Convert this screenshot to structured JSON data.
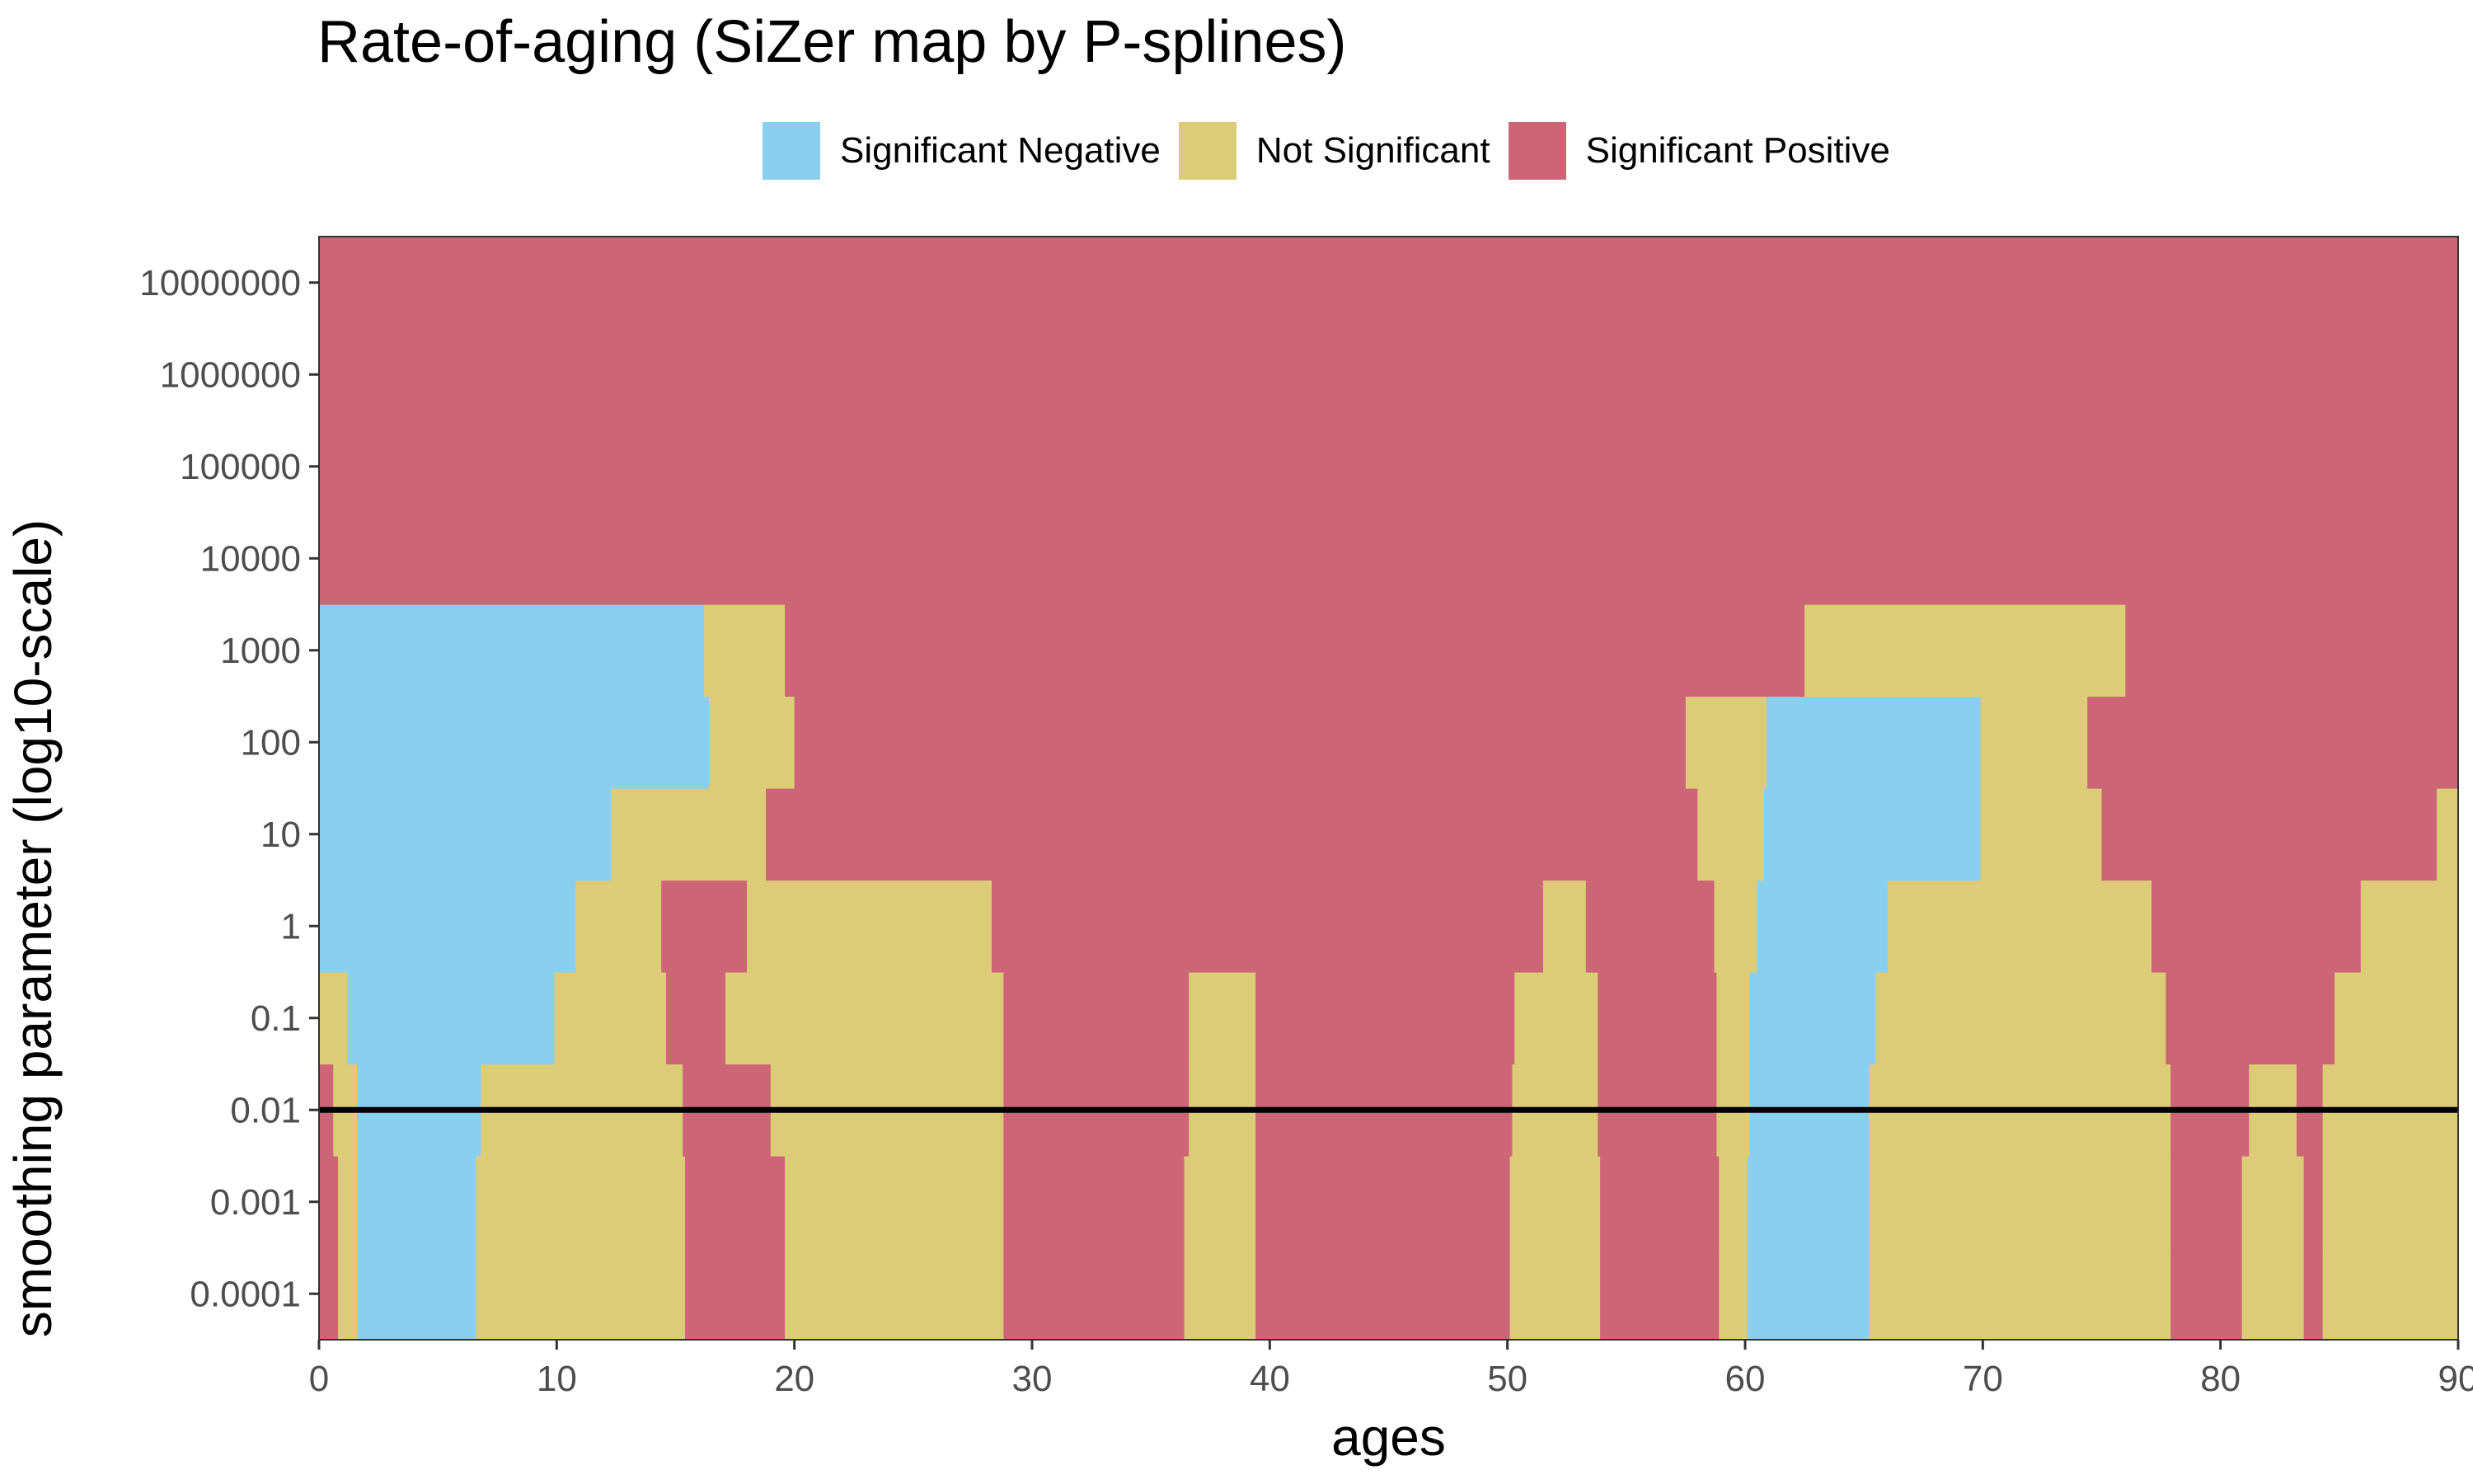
{
  "chart_data": {
    "type": "heatmap",
    "title": "Rate-of-aging (SiZer map by P-splines)",
    "xlabel": "ages",
    "ylabel": "smoothing parameter (log10-scale)",
    "xlim": [
      0,
      90
    ],
    "ylim_log10": [
      -4.5,
      7.5
    ],
    "x_ticks": [
      0,
      10,
      20,
      30,
      40,
      50,
      60,
      70,
      80,
      90
    ],
    "y_ticks": [
      {
        "log10": -4,
        "label": "0.0001"
      },
      {
        "log10": -3,
        "label": "0.001"
      },
      {
        "log10": -2,
        "label": "0.01"
      },
      {
        "log10": -1,
        "label": "0.1"
      },
      {
        "log10": 0,
        "label": "1"
      },
      {
        "log10": 1,
        "label": "10"
      },
      {
        "log10": 2,
        "label": "100"
      },
      {
        "log10": 3,
        "label": "1000"
      },
      {
        "log10": 4,
        "label": "10000"
      },
      {
        "log10": 5,
        "label": "100000"
      },
      {
        "log10": 6,
        "label": "1000000"
      },
      {
        "log10": 7,
        "label": "10000000"
      }
    ],
    "legend": [
      {
        "key": "neg",
        "label": "Significant Negative",
        "color": "#89CFEF"
      },
      {
        "key": "ns",
        "label": "Not Significant",
        "color": "#DDCC77"
      },
      {
        "key": "pos",
        "label": "Significant Positive",
        "color": "#CC6677"
      }
    ],
    "legend_position": "top",
    "grid": false,
    "reference_line": {
      "log10": -2,
      "label": "0.01"
    },
    "background_state": "pos",
    "rows": [
      {
        "log10_lambda": -4,
        "segments": [
          {
            "from": 0,
            "to": 0.8,
            "state": "pos"
          },
          {
            "from": 0.8,
            "to": 1.6,
            "state": "ns"
          },
          {
            "from": 1.6,
            "to": 6.6,
            "state": "neg"
          },
          {
            "from": 6.6,
            "to": 15.4,
            "state": "ns"
          },
          {
            "from": 15.4,
            "to": 19.6,
            "state": "pos"
          },
          {
            "from": 19.6,
            "to": 28.8,
            "state": "ns"
          },
          {
            "from": 28.8,
            "to": 36.4,
            "state": "pos"
          },
          {
            "from": 36.4,
            "to": 39.4,
            "state": "ns"
          },
          {
            "from": 39.4,
            "to": 50.1,
            "state": "pos"
          },
          {
            "from": 50.1,
            "to": 53.9,
            "state": "ns"
          },
          {
            "from": 53.9,
            "to": 58.9,
            "state": "pos"
          },
          {
            "from": 58.9,
            "to": 60.1,
            "state": "ns"
          },
          {
            "from": 60.1,
            "to": 65.2,
            "state": "neg"
          },
          {
            "from": 65.2,
            "to": 77.9,
            "state": "ns"
          },
          {
            "from": 77.9,
            "to": 80.9,
            "state": "pos"
          },
          {
            "from": 80.9,
            "to": 83.5,
            "state": "ns"
          },
          {
            "from": 83.5,
            "to": 84.3,
            "state": "pos"
          },
          {
            "from": 84.3,
            "to": 90,
            "state": "ns"
          }
        ]
      },
      {
        "log10_lambda": -3,
        "segments": [
          {
            "from": 0,
            "to": 0.8,
            "state": "pos"
          },
          {
            "from": 0.8,
            "to": 1.6,
            "state": "ns"
          },
          {
            "from": 1.6,
            "to": 6.6,
            "state": "neg"
          },
          {
            "from": 6.6,
            "to": 15.4,
            "state": "ns"
          },
          {
            "from": 15.4,
            "to": 19.6,
            "state": "pos"
          },
          {
            "from": 19.6,
            "to": 28.8,
            "state": "ns"
          },
          {
            "from": 28.8,
            "to": 36.4,
            "state": "pos"
          },
          {
            "from": 36.4,
            "to": 39.4,
            "state": "ns"
          },
          {
            "from": 39.4,
            "to": 50.1,
            "state": "pos"
          },
          {
            "from": 50.1,
            "to": 53.9,
            "state": "ns"
          },
          {
            "from": 53.9,
            "to": 58.9,
            "state": "pos"
          },
          {
            "from": 58.9,
            "to": 60.1,
            "state": "ns"
          },
          {
            "from": 60.1,
            "to": 65.2,
            "state": "neg"
          },
          {
            "from": 65.2,
            "to": 77.9,
            "state": "ns"
          },
          {
            "from": 77.9,
            "to": 80.9,
            "state": "pos"
          },
          {
            "from": 80.9,
            "to": 83.5,
            "state": "ns"
          },
          {
            "from": 83.5,
            "to": 84.3,
            "state": "pos"
          },
          {
            "from": 84.3,
            "to": 90,
            "state": "ns"
          }
        ]
      },
      {
        "log10_lambda": -2,
        "segments": [
          {
            "from": 0,
            "to": 0.6,
            "state": "pos"
          },
          {
            "from": 0.6,
            "to": 1.6,
            "state": "ns"
          },
          {
            "from": 1.6,
            "to": 6.8,
            "state": "neg"
          },
          {
            "from": 6.8,
            "to": 15.3,
            "state": "ns"
          },
          {
            "from": 15.3,
            "to": 19.0,
            "state": "pos"
          },
          {
            "from": 19.0,
            "to": 28.8,
            "state": "ns"
          },
          {
            "from": 28.8,
            "to": 36.6,
            "state": "pos"
          },
          {
            "from": 36.6,
            "to": 39.4,
            "state": "ns"
          },
          {
            "from": 39.4,
            "to": 50.2,
            "state": "pos"
          },
          {
            "from": 50.2,
            "to": 53.8,
            "state": "ns"
          },
          {
            "from": 53.8,
            "to": 58.8,
            "state": "pos"
          },
          {
            "from": 58.8,
            "to": 60.2,
            "state": "ns"
          },
          {
            "from": 60.2,
            "to": 65.2,
            "state": "neg"
          },
          {
            "from": 65.2,
            "to": 77.9,
            "state": "ns"
          },
          {
            "from": 77.9,
            "to": 81.2,
            "state": "pos"
          },
          {
            "from": 81.2,
            "to": 83.2,
            "state": "ns"
          },
          {
            "from": 83.2,
            "to": 84.3,
            "state": "pos"
          },
          {
            "from": 84.3,
            "to": 90,
            "state": "ns"
          }
        ]
      },
      {
        "log10_lambda": -1,
        "segments": [
          {
            "from": 0,
            "to": 1.2,
            "state": "ns"
          },
          {
            "from": 1.2,
            "to": 9.9,
            "state": "neg"
          },
          {
            "from": 9.9,
            "to": 14.6,
            "state": "ns"
          },
          {
            "from": 14.6,
            "to": 17.1,
            "state": "pos"
          },
          {
            "from": 17.1,
            "to": 28.8,
            "state": "ns"
          },
          {
            "from": 28.8,
            "to": 36.6,
            "state": "pos"
          },
          {
            "from": 36.6,
            "to": 39.4,
            "state": "ns"
          },
          {
            "from": 39.4,
            "to": 50.3,
            "state": "pos"
          },
          {
            "from": 50.3,
            "to": 53.8,
            "state": "ns"
          },
          {
            "from": 53.8,
            "to": 58.8,
            "state": "pos"
          },
          {
            "from": 58.8,
            "to": 60.2,
            "state": "ns"
          },
          {
            "from": 60.2,
            "to": 65.5,
            "state": "neg"
          },
          {
            "from": 65.5,
            "to": 77.7,
            "state": "ns"
          },
          {
            "from": 77.7,
            "to": 84.8,
            "state": "pos"
          },
          {
            "from": 84.8,
            "to": 90,
            "state": "ns"
          }
        ]
      },
      {
        "log10_lambda": 0,
        "segments": [
          {
            "from": 0,
            "to": 10.8,
            "state": "neg"
          },
          {
            "from": 10.8,
            "to": 14.4,
            "state": "ns"
          },
          {
            "from": 14.4,
            "to": 18.0,
            "state": "pos"
          },
          {
            "from": 18.0,
            "to": 28.3,
            "state": "ns"
          },
          {
            "from": 28.3,
            "to": 51.5,
            "state": "pos"
          },
          {
            "from": 51.5,
            "to": 53.3,
            "state": "ns"
          },
          {
            "from": 53.3,
            "to": 58.7,
            "state": "pos"
          },
          {
            "from": 58.7,
            "to": 60.5,
            "state": "ns"
          },
          {
            "from": 60.5,
            "to": 66.0,
            "state": "neg"
          },
          {
            "from": 66.0,
            "to": 77.1,
            "state": "ns"
          },
          {
            "from": 77.1,
            "to": 85.9,
            "state": "pos"
          },
          {
            "from": 85.9,
            "to": 90,
            "state": "ns"
          }
        ]
      },
      {
        "log10_lambda": 1,
        "segments": [
          {
            "from": 0,
            "to": 12.3,
            "state": "neg"
          },
          {
            "from": 12.3,
            "to": 18.8,
            "state": "ns"
          },
          {
            "from": 18.8,
            "to": 58.0,
            "state": "pos"
          },
          {
            "from": 58.0,
            "to": 60.8,
            "state": "ns"
          },
          {
            "from": 60.8,
            "to": 69.9,
            "state": "neg"
          },
          {
            "from": 69.9,
            "to": 75.0,
            "state": "ns"
          },
          {
            "from": 75.0,
            "to": 89.1,
            "state": "pos"
          },
          {
            "from": 89.1,
            "to": 90,
            "state": "ns"
          }
        ]
      },
      {
        "log10_lambda": 2,
        "segments": [
          {
            "from": 0,
            "to": 16.4,
            "state": "neg"
          },
          {
            "from": 16.4,
            "to": 20.0,
            "state": "ns"
          },
          {
            "from": 20.0,
            "to": 57.5,
            "state": "pos"
          },
          {
            "from": 57.5,
            "to": 60.9,
            "state": "ns"
          },
          {
            "from": 60.9,
            "to": 69.9,
            "state": "neg"
          },
          {
            "from": 69.9,
            "to": 74.4,
            "state": "ns"
          },
          {
            "from": 74.4,
            "to": 90,
            "state": "pos"
          }
        ]
      },
      {
        "log10_lambda": 3,
        "segments": [
          {
            "from": 0,
            "to": 16.2,
            "state": "neg"
          },
          {
            "from": 16.2,
            "to": 19.6,
            "state": "ns"
          },
          {
            "from": 19.6,
            "to": 62.5,
            "state": "pos"
          },
          {
            "from": 62.5,
            "to": 76.0,
            "state": "ns"
          },
          {
            "from": 76.0,
            "to": 90,
            "state": "pos"
          }
        ]
      },
      {
        "log10_lambda": 4,
        "segments": [
          {
            "from": 0,
            "to": 90,
            "state": "pos"
          }
        ]
      },
      {
        "log10_lambda": 5,
        "segments": [
          {
            "from": 0,
            "to": 90,
            "state": "pos"
          }
        ]
      },
      {
        "log10_lambda": 6,
        "segments": [
          {
            "from": 0,
            "to": 90,
            "state": "pos"
          }
        ]
      },
      {
        "log10_lambda": 7,
        "segments": [
          {
            "from": 0,
            "to": 90,
            "state": "pos"
          }
        ]
      }
    ]
  }
}
